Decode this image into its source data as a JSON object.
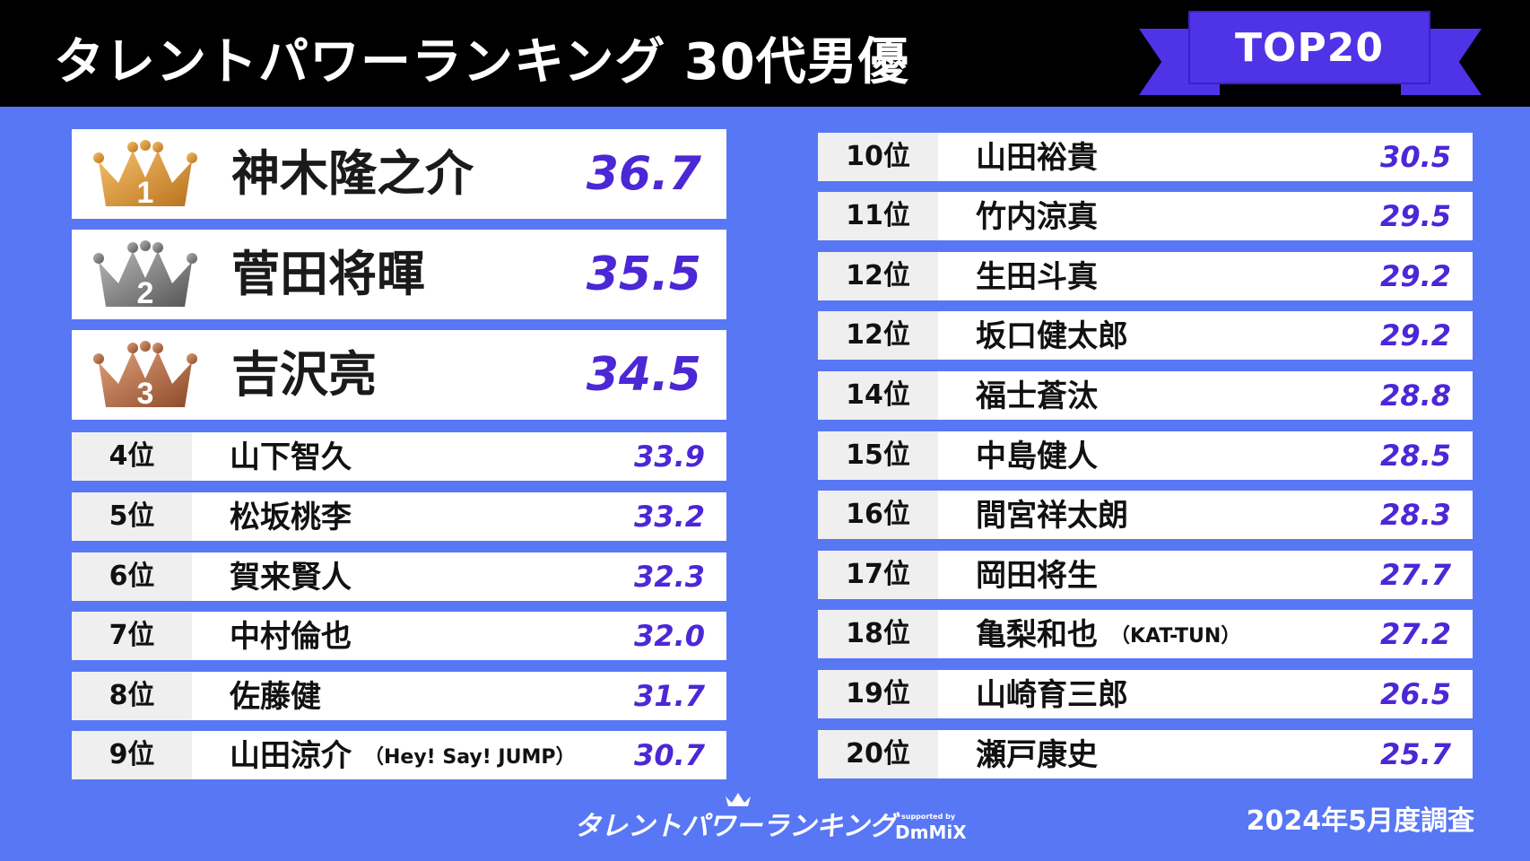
{
  "header": {
    "title": "タレントパワーランキング 30代男優",
    "badge": "TOP20"
  },
  "top3": [
    {
      "rank": "1",
      "name": "神木隆之介",
      "score": "36.7",
      "color": "#c98a2e"
    },
    {
      "rank": "2",
      "name": "菅田将暉",
      "score": "35.5",
      "color": "#7a7a7a"
    },
    {
      "rank": "3",
      "name": "吉沢亮",
      "score": "34.5",
      "color": "#a9653f"
    }
  ],
  "left_rows": [
    {
      "rank": "4位",
      "name": "山下智久",
      "note": "",
      "score": "33.9"
    },
    {
      "rank": "5位",
      "name": "松坂桃李",
      "note": "",
      "score": "33.2"
    },
    {
      "rank": "6位",
      "name": "賀来賢人",
      "note": "",
      "score": "32.3"
    },
    {
      "rank": "7位",
      "name": "中村倫也",
      "note": "",
      "score": "32.0"
    },
    {
      "rank": "8位",
      "name": "佐藤健",
      "note": "",
      "score": "31.7"
    },
    {
      "rank": "9位",
      "name": "山田涼介",
      "note": "（Hey! Say! JUMP）",
      "score": "30.7"
    }
  ],
  "right_rows": [
    {
      "rank": "10位",
      "name": "山田裕貴",
      "note": "",
      "score": "30.5"
    },
    {
      "rank": "11位",
      "name": "竹内涼真",
      "note": "",
      "score": "29.5"
    },
    {
      "rank": "12位",
      "name": "生田斗真",
      "note": "",
      "score": "29.2"
    },
    {
      "rank": "12位",
      "name": "坂口健太郎",
      "note": "",
      "score": "29.2"
    },
    {
      "rank": "14位",
      "name": "福士蒼汰",
      "note": "",
      "score": "28.8"
    },
    {
      "rank": "15位",
      "name": "中島健人",
      "note": "",
      "score": "28.5"
    },
    {
      "rank": "16位",
      "name": "間宮祥太朗",
      "note": "",
      "score": "28.3"
    },
    {
      "rank": "17位",
      "name": "岡田将生",
      "note": "",
      "score": "27.7"
    },
    {
      "rank": "18位",
      "name": "亀梨和也",
      "note": "（KAT-TUN）",
      "score": "27.2"
    },
    {
      "rank": "19位",
      "name": "山崎育三郎",
      "note": "",
      "score": "26.5"
    },
    {
      "rank": "20位",
      "name": "瀬戸康史",
      "note": "",
      "score": "25.7"
    }
  ],
  "footer": {
    "logo": "タレントパワーランキング",
    "supported_by": "supported by",
    "brand": "DmMiX",
    "date": "2024年5月度調査"
  },
  "colors": {
    "background": "#5877f5",
    "accent": "#4b27d6",
    "ribbon": "#4f33e6"
  }
}
